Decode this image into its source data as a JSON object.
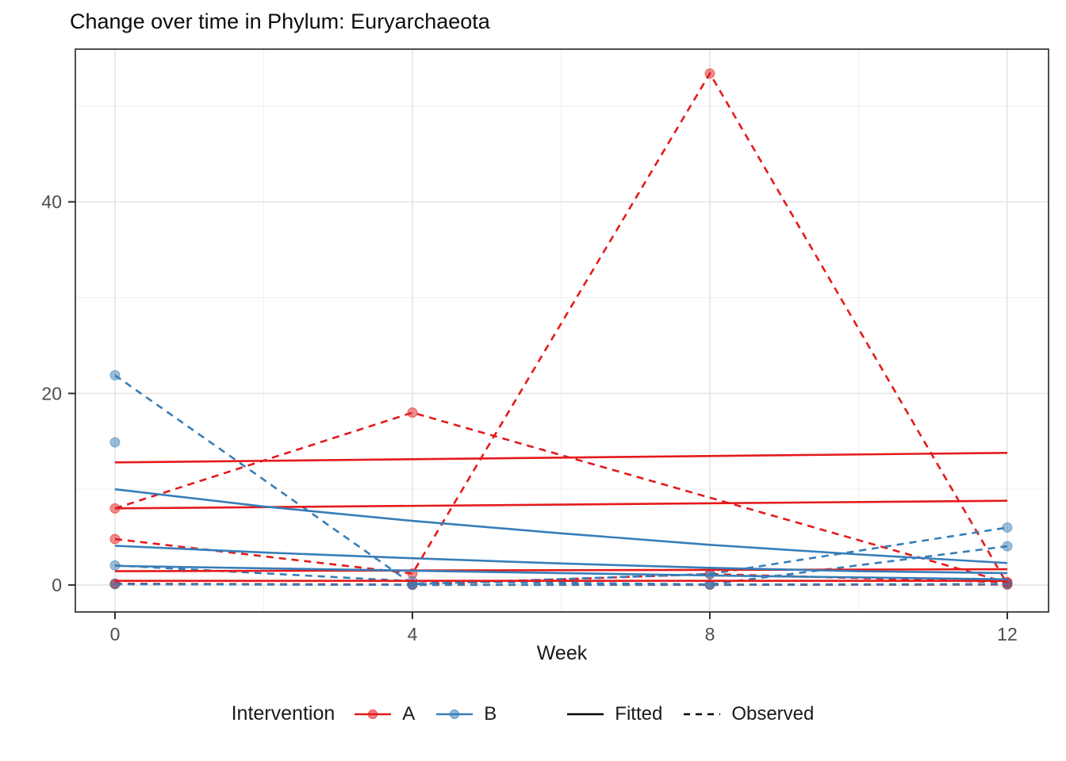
{
  "title": "Change over time in Phylum: Euryarchaeota",
  "axes": {
    "x_label": "Week",
    "x_tick_labels": [
      "0",
      "4",
      "8",
      "12"
    ],
    "y_tick_labels": [
      "0",
      "20",
      "40"
    ]
  },
  "legend": {
    "title": "Intervention",
    "groups": [
      {
        "id": "A",
        "label": "A",
        "color": "#e41a1c"
      },
      {
        "id": "B",
        "label": "B",
        "color": "#377eb8"
      }
    ],
    "linetypes": [
      {
        "id": "fitted",
        "label": "Fitted",
        "style": "solid"
      },
      {
        "id": "observed",
        "label": "Observed",
        "style": "dashed"
      }
    ]
  },
  "colors": {
    "group_A": "#e41a1c",
    "group_B": "#377eb8",
    "grid_major": "#e4e4e4",
    "grid_minor": "#f0f0f0",
    "panel_border": "#2f2f2f",
    "axis_text": "#4d4d4d",
    "legend_key": "#000000"
  },
  "chart_data": {
    "type": "line",
    "title": "Change over time in Phylum: Euryarchaeota",
    "xlabel": "Week",
    "ylabel": "",
    "xlim": [
      -0.533,
      12.555
    ],
    "ylim": [
      -2.81,
      55.94
    ],
    "x_major_ticks": [
      0,
      4,
      8,
      12
    ],
    "x_minor_ticks": [
      2,
      6,
      10
    ],
    "y_major_ticks": [
      0,
      20,
      40
    ],
    "y_minor_ticks": [
      10,
      30,
      50
    ],
    "grid": true,
    "legend_position": "bottom",
    "series": [
      {
        "name": "A-fitted-1",
        "group": "A",
        "linetype": "fitted",
        "points": false,
        "x": [
          0,
          12
        ],
        "y": [
          12.8,
          13.8
        ]
      },
      {
        "name": "A-fitted-2",
        "group": "A",
        "linetype": "fitted",
        "points": false,
        "x": [
          0,
          12
        ],
        "y": [
          8.0,
          8.8
        ]
      },
      {
        "name": "A-fitted-3",
        "group": "A",
        "linetype": "fitted",
        "points": false,
        "x": [
          0,
          12
        ],
        "y": [
          1.45,
          1.65
        ]
      },
      {
        "name": "A-fitted-4",
        "group": "A",
        "linetype": "fitted",
        "points": false,
        "x": [
          0,
          12
        ],
        "y": [
          0.44,
          0.44
        ]
      },
      {
        "name": "B-fitted-1",
        "group": "B",
        "linetype": "fitted",
        "points": false,
        "x": [
          0,
          2,
          4,
          6,
          8,
          10,
          12
        ],
        "y": [
          10.0,
          8.2,
          6.7,
          5.4,
          4.2,
          3.2,
          2.3
        ]
      },
      {
        "name": "B-fitted-2",
        "group": "B",
        "linetype": "fitted",
        "points": false,
        "x": [
          0,
          2,
          4,
          6,
          8,
          10,
          12
        ],
        "y": [
          4.1,
          3.4,
          2.8,
          2.25,
          1.8,
          1.45,
          1.25
        ]
      },
      {
        "name": "B-fitted-3",
        "group": "B",
        "linetype": "fitted",
        "points": false,
        "x": [
          0,
          2,
          4,
          6,
          8,
          10,
          12
        ],
        "y": [
          2.0,
          1.75,
          1.5,
          1.25,
          1.0,
          0.8,
          0.6
        ]
      },
      {
        "name": "A-observed-1",
        "group": "A",
        "linetype": "observed",
        "points": true,
        "x": [
          0,
          4,
          12
        ],
        "y": [
          8.0,
          18.0,
          0.25
        ]
      },
      {
        "name": "A-observed-2",
        "group": "A",
        "linetype": "observed",
        "points": true,
        "x": [
          0,
          4,
          8,
          12
        ],
        "y": [
          4.8,
          1.2,
          53.4,
          0.1
        ]
      },
      {
        "name": "A-observed-3",
        "group": "A",
        "linetype": "observed",
        "points": true,
        "x": [
          0,
          4,
          8,
          12
        ],
        "y": [
          0.15,
          0.05,
          1.15,
          0.3
        ]
      },
      {
        "name": "A-observed-4",
        "group": "A",
        "linetype": "observed",
        "points": true,
        "x": [
          0,
          4,
          8,
          12
        ],
        "y": [
          0.1,
          0.02,
          0.02,
          0.05
        ]
      },
      {
        "name": "B-observed-1",
        "group": "B",
        "linetype": "observed",
        "points": true,
        "x": [
          0,
          4,
          8,
          12
        ],
        "y": [
          21.9,
          0.1,
          1.15,
          6.0
        ]
      },
      {
        "name": "B-observed-2",
        "group": "B",
        "linetype": "observed",
        "points": true,
        "x": [
          0
        ],
        "y": [
          14.9
        ]
      },
      {
        "name": "B-observed-3",
        "group": "B",
        "linetype": "observed",
        "points": true,
        "x": [
          0,
          4,
          8,
          12
        ],
        "y": [
          2.05,
          0.4,
          0.07,
          4.05
        ]
      },
      {
        "name": "B-observed-4",
        "group": "B",
        "linetype": "observed",
        "points": true,
        "x": [
          0,
          4,
          8,
          12
        ],
        "y": [
          0.1,
          0.02,
          0.05,
          0.1
        ]
      }
    ]
  }
}
